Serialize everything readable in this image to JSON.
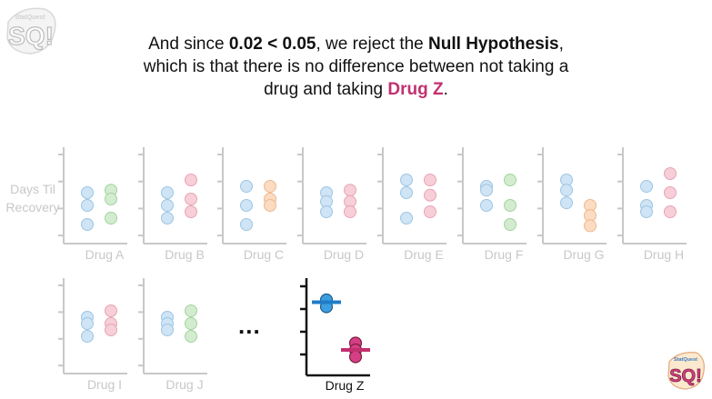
{
  "headline": {
    "part1": "And since ",
    "comparison": "0.02 < 0.05",
    "part2": ", we reject the ",
    "null_hyp": "Null Hypothesis",
    "part3": ", which is that there is no difference between not taking a drug and taking ",
    "drug_z": "Drug Z",
    "part4": "."
  },
  "y_axis_label_line1": "Days Til",
  "y_axis_label_line2": "Recovery",
  "ellipsis": "...",
  "logo_text": "SQ!",
  "colors": {
    "accent": "#c2306f",
    "faded_axis": "#c8c8c8",
    "blue": "#3d9ee0",
    "pink": "#d63f86",
    "faded_blue": "#cfe4f4",
    "faded_pink": "#f6cfd8",
    "faded_green": "#d3ecd0",
    "faded_orange": "#fbdcc3"
  },
  "chart_data": [
    {
      "type": "scatter",
      "label": "Drug A",
      "left": [
        2,
        3,
        4.5
      ],
      "right": [
        1.8,
        2.5,
        4
      ]
    },
    {
      "type": "scatter",
      "label": "Drug B",
      "left": [
        2,
        3,
        4
      ],
      "right": [
        1,
        2.5,
        3.5
      ]
    },
    {
      "type": "scatter",
      "label": "Drug C",
      "left": [
        1.5,
        3,
        4.5
      ],
      "right": [
        1.5,
        2.5,
        3
      ]
    },
    {
      "type": "scatter",
      "label": "Drug D",
      "left": [
        2,
        2.7,
        3.5
      ],
      "right": [
        1.8,
        2.7,
        3.5
      ]
    },
    {
      "type": "scatter",
      "label": "Drug E",
      "left": [
        1,
        2,
        4
      ],
      "right": [
        1,
        2.2,
        3.5
      ]
    },
    {
      "type": "scatter",
      "label": "Drug F",
      "left": [
        1.5,
        1.8,
        3
      ],
      "right": [
        1,
        3,
        4.5
      ]
    },
    {
      "type": "scatter",
      "label": "Drug G",
      "left": [
        1,
        1.8,
        2.8
      ],
      "right": [
        3,
        3.8,
        4.6
      ]
    },
    {
      "type": "scatter",
      "label": "Drug H",
      "left": [
        1.5,
        3,
        3.5
      ],
      "right": [
        0.5,
        2,
        3.5
      ]
    },
    {
      "type": "scatter",
      "label": "Drug I",
      "left": [
        1.5,
        2,
        3
      ],
      "right": [
        1,
        2,
        2.5
      ]
    },
    {
      "type": "scatter",
      "label": "Drug J",
      "left": [
        1.5,
        2,
        2.5
      ],
      "right": [
        1,
        2,
        3
      ]
    },
    {
      "type": "scatter",
      "label": "Drug Z",
      "left": [
        0.8,
        1.1
      ],
      "right": [
        2.7,
        3.0,
        3.3
      ],
      "left_mean": 0.9,
      "right_mean": 3.0
    }
  ]
}
